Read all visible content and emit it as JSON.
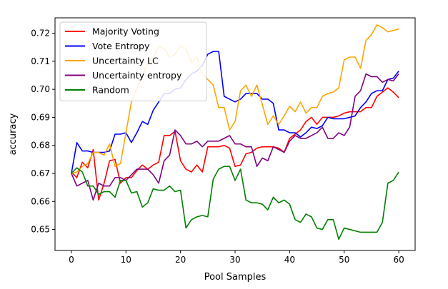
{
  "chart_data": {
    "type": "line",
    "title": "",
    "xlabel": "Pool Samples",
    "ylabel": "accuracy",
    "xlim": [
      -3,
      63
    ],
    "ylim": [
      0.6425,
      0.7255
    ],
    "xticks": [
      0,
      10,
      20,
      30,
      40,
      50,
      60
    ],
    "yticks": [
      0.65,
      0.66,
      0.67,
      0.68,
      0.69,
      0.7,
      0.71,
      0.72
    ],
    "ytick_labels": [
      "0.65",
      "0.66",
      "0.67",
      "0.68",
      "0.69",
      "0.70",
      "0.71",
      "0.72"
    ],
    "grid": false,
    "legend_position": "top-left",
    "x": [
      0,
      1,
      2,
      3,
      4,
      5,
      6,
      7,
      8,
      9,
      10,
      11,
      12,
      13,
      14,
      15,
      16,
      17,
      18,
      19,
      20,
      21,
      22,
      23,
      24,
      25,
      26,
      27,
      28,
      29,
      30,
      31,
      32,
      33,
      34,
      35,
      36,
      37,
      38,
      39,
      40,
      41,
      42,
      43,
      44,
      45,
      46,
      47,
      48,
      49,
      50,
      51,
      52,
      53,
      54,
      55,
      56,
      57,
      58,
      59,
      60
    ],
    "series": [
      {
        "name": "Majority Voting",
        "color": "#ff0000",
        "values": [
          0.6705,
          0.6685,
          0.674,
          0.672,
          0.6785,
          0.6605,
          0.6665,
          0.6745,
          0.675,
          0.6665,
          0.6685,
          0.6685,
          0.671,
          0.673,
          0.6715,
          0.673,
          0.674,
          0.6835,
          0.6835,
          0.685,
          0.6745,
          0.6715,
          0.6705,
          0.673,
          0.6705,
          0.6795,
          0.6795,
          0.6795,
          0.68,
          0.679,
          0.6725,
          0.673,
          0.677,
          0.6775,
          0.679,
          0.6795,
          0.6795,
          0.6795,
          0.679,
          0.6775,
          0.6825,
          0.684,
          0.6855,
          0.6885,
          0.69,
          0.6875,
          0.69,
          0.69,
          0.69,
          0.6905,
          0.6915,
          0.692,
          0.692,
          0.692,
          0.6935,
          0.6935,
          0.6975,
          0.699,
          0.7005,
          0.699,
          0.697
        ]
      },
      {
        "name": "Vote Entropy",
        "color": "#0000ff",
        "values": [
          0.67,
          0.681,
          0.678,
          0.678,
          0.6775,
          0.6775,
          0.6775,
          0.678,
          0.684,
          0.684,
          0.6845,
          0.681,
          0.6845,
          0.6885,
          0.6875,
          0.6925,
          0.6955,
          0.6985,
          0.6985,
          0.7,
          0.7005,
          0.7035,
          0.7055,
          0.7065,
          0.7085,
          0.7125,
          0.7135,
          0.7135,
          0.6975,
          0.6965,
          0.6955,
          0.6965,
          0.6985,
          0.6985,
          0.6985,
          0.6965,
          0.6965,
          0.695,
          0.6855,
          0.6855,
          0.6845,
          0.6845,
          0.683,
          0.6845,
          0.6865,
          0.686,
          0.687,
          0.69,
          0.6895,
          0.6895,
          0.6895,
          0.69,
          0.6905,
          0.6935,
          0.6955,
          0.6985,
          0.6995,
          0.6995,
          0.7035,
          0.704,
          0.7065
        ]
      },
      {
        "name": "Uncertainty LC",
        "color": "#ffa500",
        "values": [
          0.67,
          0.6705,
          0.6725,
          0.6735,
          0.6775,
          0.6775,
          0.6765,
          0.6805,
          0.6725,
          0.6735,
          0.6845,
          0.6955,
          0.7005,
          0.7045,
          0.7095,
          0.7115,
          0.7155,
          0.7145,
          0.7115,
          0.7125,
          0.7155,
          0.7145,
          0.7095,
          0.7115,
          0.7055,
          0.7035,
          0.7015,
          0.6935,
          0.6935,
          0.6855,
          0.6885,
          0.6995,
          0.7015,
          0.6975,
          0.7015,
          0.6945,
          0.6875,
          0.6905,
          0.6875,
          0.6905,
          0.694,
          0.692,
          0.6955,
          0.6915,
          0.6935,
          0.6935,
          0.6975,
          0.6985,
          0.699,
          0.7005,
          0.7105,
          0.7115,
          0.7115,
          0.7075,
          0.7175,
          0.7195,
          0.723,
          0.722,
          0.7205,
          0.721,
          0.7215
        ]
      },
      {
        "name": "Uncertainty entropy",
        "color": "#800080",
        "values": [
          0.67,
          0.6655,
          0.6665,
          0.6675,
          0.6605,
          0.6665,
          0.6655,
          0.6655,
          0.6685,
          0.6685,
          0.6675,
          0.6695,
          0.6715,
          0.6715,
          0.6715,
          0.6695,
          0.6665,
          0.6745,
          0.6765,
          0.6855,
          0.6835,
          0.6805,
          0.6805,
          0.6815,
          0.6795,
          0.6815,
          0.6815,
          0.6815,
          0.6825,
          0.6835,
          0.6805,
          0.6805,
          0.6795,
          0.6795,
          0.6725,
          0.6755,
          0.6745,
          0.6795,
          0.6785,
          0.6775,
          0.6815,
          0.6835,
          0.6825,
          0.6825,
          0.6835,
          0.6845,
          0.6865,
          0.6825,
          0.6825,
          0.6845,
          0.6835,
          0.6865,
          0.6975,
          0.6995,
          0.7055,
          0.7045,
          0.7045,
          0.7025,
          0.7035,
          0.703,
          0.7055
        ]
      },
      {
        "name": "Random",
        "color": "#008000",
        "values": [
          0.67,
          0.672,
          0.6705,
          0.6655,
          0.6655,
          0.6625,
          0.6635,
          0.6635,
          0.6615,
          0.6675,
          0.6675,
          0.663,
          0.6635,
          0.658,
          0.6595,
          0.6645,
          0.664,
          0.664,
          0.6655,
          0.6635,
          0.664,
          0.6505,
          0.6535,
          0.6545,
          0.655,
          0.6545,
          0.668,
          0.6715,
          0.6725,
          0.6725,
          0.6675,
          0.6715,
          0.6605,
          0.6595,
          0.6595,
          0.659,
          0.657,
          0.6615,
          0.6595,
          0.6605,
          0.659,
          0.6535,
          0.6525,
          0.6555,
          0.6545,
          0.6505,
          0.65,
          0.6535,
          0.6535,
          0.6465,
          0.6505,
          0.65,
          0.6495,
          0.649,
          0.649,
          0.649,
          0.649,
          0.6525,
          0.6665,
          0.6675,
          0.6705
        ]
      }
    ]
  }
}
